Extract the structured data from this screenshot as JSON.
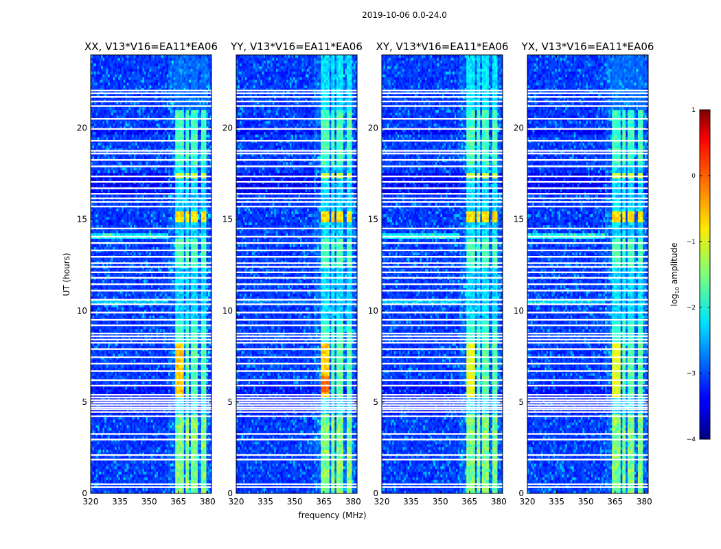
{
  "chart_data": {
    "type": "heatmap",
    "title": "2019-10-06 0.0-24.0",
    "xlabel": "frequency (MHz)",
    "ylabel": "UT (hours)",
    "xlim": [
      320,
      382
    ],
    "ylim": [
      0,
      24
    ],
    "x_ticks": [
      320,
      335,
      350,
      365,
      380
    ],
    "y_ticks": [
      0,
      5,
      10,
      15,
      20
    ],
    "x_tick_labels": [
      "320",
      "335",
      "350",
      "365",
      "380"
    ],
    "y_tick_labels": [
      "0",
      "5",
      "10",
      "15",
      "20"
    ],
    "colorbar": {
      "label_main": "log",
      "label_sub": "10",
      "label_rest": " amplitude",
      "range": [
        -4,
        1
      ],
      "ticks": [
        1,
        0,
        -1,
        -2,
        -3,
        -4
      ],
      "tick_labels": [
        "1",
        "0",
        "−1",
        "−2",
        "−3",
        "−4"
      ],
      "colormap": "jet"
    },
    "panels": [
      {
        "title": "XX, V13*V16=EA11*EA06"
      },
      {
        "title": "YY, V13*V16=EA11*EA06"
      },
      {
        "title": "XY, V13*V16=EA11*EA06"
      },
      {
        "title": "YX, V13*V16=EA11*EA06"
      }
    ],
    "rfi_channels_mhz": [
      [
        363.5,
        368
      ],
      [
        369,
        370.5
      ],
      [
        371,
        373
      ],
      [
        373.5,
        375
      ],
      [
        376.5,
        379.5
      ]
    ],
    "flagged_ut_hours": [
      0.35,
      0.5,
      1.85,
      2.1,
      2.95,
      3.25,
      4.22,
      4.45,
      4.6,
      4.7,
      4.83,
      4.97,
      5.1,
      5.25,
      5.4,
      5.9,
      6.2,
      6.7,
      7.1,
      7.45,
      7.9,
      8.25,
      8.42,
      8.6,
      8.75,
      9.2,
      9.5,
      9.9,
      10.35,
      10.6,
      11.1,
      11.45,
      11.8,
      12.1,
      12.4,
      12.6,
      12.95,
      13.3,
      13.7,
      14.05,
      14.5,
      15.7,
      15.95,
      16.15,
      16.4,
      16.7,
      17.05,
      17.35,
      17.9,
      18.25,
      18.6,
      18.75,
      19.3,
      19.95,
      20.5,
      21.2,
      21.45,
      21.7,
      21.9,
      22.05
    ]
  }
}
